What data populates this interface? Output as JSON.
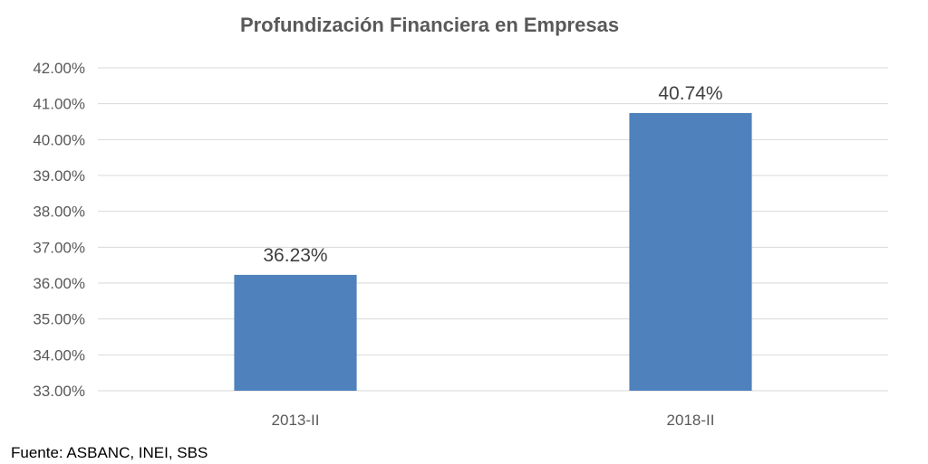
{
  "chart_data": {
    "type": "bar",
    "title": "Profundización Financiera en Empresas",
    "categories": [
      "2013-II",
      "2018-II"
    ],
    "values": [
      36.23,
      40.74
    ],
    "data_labels": [
      "36.23%",
      "40.74%"
    ],
    "ylim": [
      33,
      42
    ],
    "y_ticks": [
      33,
      34,
      35,
      36,
      37,
      38,
      39,
      40,
      41,
      42
    ],
    "y_tick_labels": [
      "33.00%",
      "34.00%",
      "35.00%",
      "36.00%",
      "37.00%",
      "38.00%",
      "39.00%",
      "40.00%",
      "41.00%",
      "42.00%"
    ],
    "xlabel": "",
    "ylabel": "",
    "grid": true,
    "legend": "none",
    "bar_color": "#4f81bd"
  },
  "source": "Fuente: ASBANC, INEI, SBS"
}
